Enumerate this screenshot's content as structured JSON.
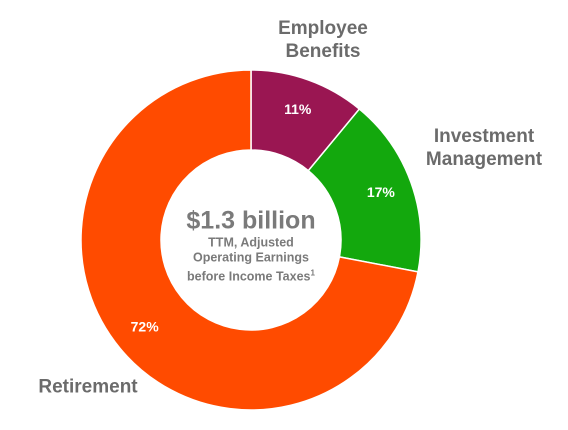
{
  "chart_data": {
    "type": "donut",
    "categories": [
      "Employee Benefits",
      "Investment Management",
      "Retirement"
    ],
    "values": [
      11,
      17,
      72
    ],
    "value_labels": [
      "11%",
      "17%",
      "72%"
    ],
    "colors": [
      "#9a1652",
      "#13a80d",
      "#ff4b00"
    ],
    "center_label": "$1.3 billion",
    "center_text": [
      "TTM, Adjusted",
      "Operating Earnings",
      "before Income Taxes"
    ],
    "center_footnote": "1"
  }
}
